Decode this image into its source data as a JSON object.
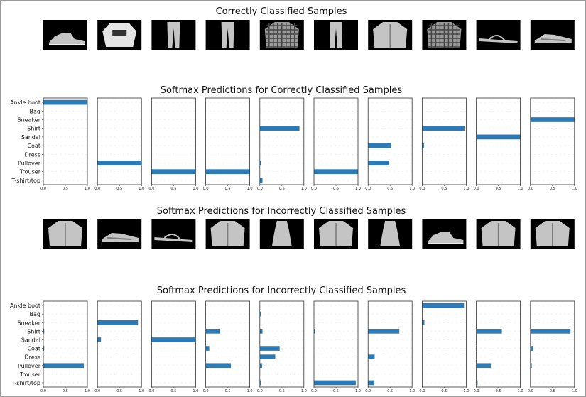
{
  "rows": [
    {
      "kind": "images",
      "title": "Correctly Classified Samples",
      "thumbs": [
        "ankle-boot",
        "shirt-lee",
        "trouser",
        "trouser",
        "shirt-plaid",
        "trouser",
        "coat",
        "shirt-plaid",
        "sandal",
        "sneaker"
      ]
    },
    {
      "kind": "bars",
      "title": "Softmax Predictions for Correctly Classified Samples"
    },
    {
      "kind": "images",
      "title": "Softmax Predictions for Incorrectly Classified Samples",
      "thumbs": [
        "coat",
        "sneaker",
        "sandal",
        "pullover",
        "dress",
        "shirt",
        "dress",
        "ankle-boot",
        "pullover",
        "coat"
      ]
    },
    {
      "kind": "bars",
      "title": "Softmax Predictions for Incorrectly Classified Samples"
    }
  ],
  "chart_data": [
    {
      "type": "bar",
      "orientation": "horizontal",
      "title": "Softmax Predictions for Correctly Classified Samples",
      "categories": [
        "T-shirt/top",
        "Trouser",
        "Pullover",
        "Dress",
        "Coat",
        "Sandal",
        "Shirt",
        "Sneaker",
        "Bag",
        "Ankle boot"
      ],
      "xlim": [
        0,
        1
      ],
      "xticks": [
        "0.0",
        "0.5",
        "1.0"
      ],
      "bar_color": "#2c7bb6",
      "series": [
        {
          "values": [
            0,
            0,
            0,
            0,
            0,
            0,
            0,
            0,
            0,
            1.0
          ]
        },
        {
          "values": [
            0,
            0,
            1.0,
            0,
            0,
            0,
            0,
            0,
            0,
            0
          ]
        },
        {
          "values": [
            0,
            1.0,
            0,
            0,
            0,
            0,
            0,
            0,
            0,
            0
          ]
        },
        {
          "values": [
            0,
            1.0,
            0,
            0,
            0,
            0,
            0,
            0,
            0,
            0
          ]
        },
        {
          "values": [
            0.06,
            0,
            0.03,
            0,
            0,
            0,
            0.9,
            0,
            0,
            0
          ]
        },
        {
          "values": [
            0,
            1.0,
            0,
            0,
            0,
            0,
            0,
            0,
            0,
            0
          ]
        },
        {
          "values": [
            0,
            0,
            0.48,
            0,
            0.52,
            0,
            0,
            0,
            0,
            0
          ]
        },
        {
          "values": [
            0,
            0,
            0,
            0,
            0.04,
            0,
            0.96,
            0,
            0,
            0
          ]
        },
        {
          "values": [
            0,
            0,
            0,
            0,
            0,
            1.0,
            0,
            0,
            0,
            0
          ]
        },
        {
          "values": [
            0,
            0,
            0,
            0,
            0,
            0,
            0,
            1.0,
            0,
            0
          ]
        }
      ]
    },
    {
      "type": "bar",
      "orientation": "horizontal",
      "title": "Softmax Predictions for Incorrectly Classified Samples",
      "categories": [
        "T-shirt/top",
        "Trouser",
        "Pullover",
        "Dress",
        "Coat",
        "Sandal",
        "Shirt",
        "Sneaker",
        "Bag",
        "Ankle boot"
      ],
      "xlim": [
        0,
        1
      ],
      "xticks": [
        "0.0",
        "0.5",
        "1.0"
      ],
      "bar_color": "#2c7bb6",
      "series": [
        {
          "values": [
            0,
            0,
            0.92,
            0,
            0.02,
            0,
            0.02,
            0,
            0,
            0
          ]
        },
        {
          "values": [
            0,
            0,
            0,
            0,
            0,
            0.08,
            0,
            0.92,
            0,
            0
          ]
        },
        {
          "values": [
            0,
            0,
            0,
            0,
            0,
            1.0,
            0,
            0,
            0,
            0
          ]
        },
        {
          "values": [
            0,
            0,
            0.57,
            0,
            0.08,
            0,
            0.33,
            0,
            0,
            0
          ]
        },
        {
          "values": [
            0.02,
            0,
            0.05,
            0.35,
            0.45,
            0,
            0.06,
            0,
            0.02,
            0
          ]
        },
        {
          "values": [
            0.95,
            0,
            0,
            0,
            0,
            0,
            0.03,
            0,
            0,
            0
          ]
        },
        {
          "values": [
            0.14,
            0,
            0,
            0.15,
            0,
            0,
            0.71,
            0,
            0,
            0
          ]
        },
        {
          "values": [
            0,
            0,
            0,
            0,
            0,
            0,
            0,
            0.05,
            0,
            0.95
          ]
        },
        {
          "values": [
            0.03,
            0,
            0.33,
            0.02,
            0.02,
            0,
            0.58,
            0,
            0,
            0
          ]
        },
        {
          "values": [
            0,
            0,
            0.03,
            0,
            0.06,
            0,
            0.91,
            0,
            0,
            0
          ]
        }
      ]
    }
  ]
}
